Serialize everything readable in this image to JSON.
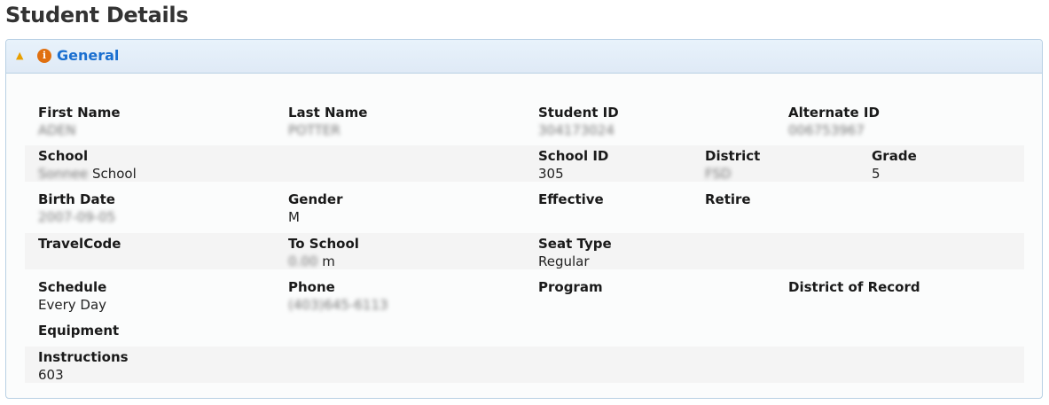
{
  "page_title": "Student Details",
  "panel": {
    "title": "General",
    "collapse_icon": "chevron-up-icon",
    "info_icon": "info-icon",
    "accent": "#1a6fd0"
  },
  "fields": {
    "first_name": {
      "label": "First Name",
      "value": "ADEN"
    },
    "last_name": {
      "label": "Last Name",
      "value": "POTTER"
    },
    "student_id": {
      "label": "Student ID",
      "value": "304173024"
    },
    "alternate_id": {
      "label": "Alternate ID",
      "value": "006753967"
    },
    "school": {
      "label": "School",
      "value_blurred": "Sonnee",
      "value": "School"
    },
    "school_id": {
      "label": "School ID",
      "value": "305"
    },
    "district": {
      "label": "District",
      "value": "FSD"
    },
    "grade": {
      "label": "Grade",
      "value": "5"
    },
    "birth_date": {
      "label": "Birth Date",
      "value": "2007-09-05"
    },
    "gender": {
      "label": "Gender",
      "value": "M"
    },
    "effective": {
      "label": "Effective",
      "value": ""
    },
    "retire": {
      "label": "Retire",
      "value": ""
    },
    "travel_code": {
      "label": "TravelCode",
      "value": ""
    },
    "to_school": {
      "label": "To School",
      "value_blurred": "0.00",
      "unit": "m"
    },
    "seat_type": {
      "label": "Seat Type",
      "value": "Regular"
    },
    "schedule": {
      "label": "Schedule",
      "value": "Every Day"
    },
    "phone": {
      "label": "Phone",
      "value": "(403)645-6113"
    },
    "program": {
      "label": "Program",
      "value": ""
    },
    "district_of_record": {
      "label": "District of Record",
      "value": ""
    },
    "equipment": {
      "label": "Equipment",
      "value": ""
    },
    "instructions": {
      "label": "Instructions",
      "value": "603"
    }
  }
}
